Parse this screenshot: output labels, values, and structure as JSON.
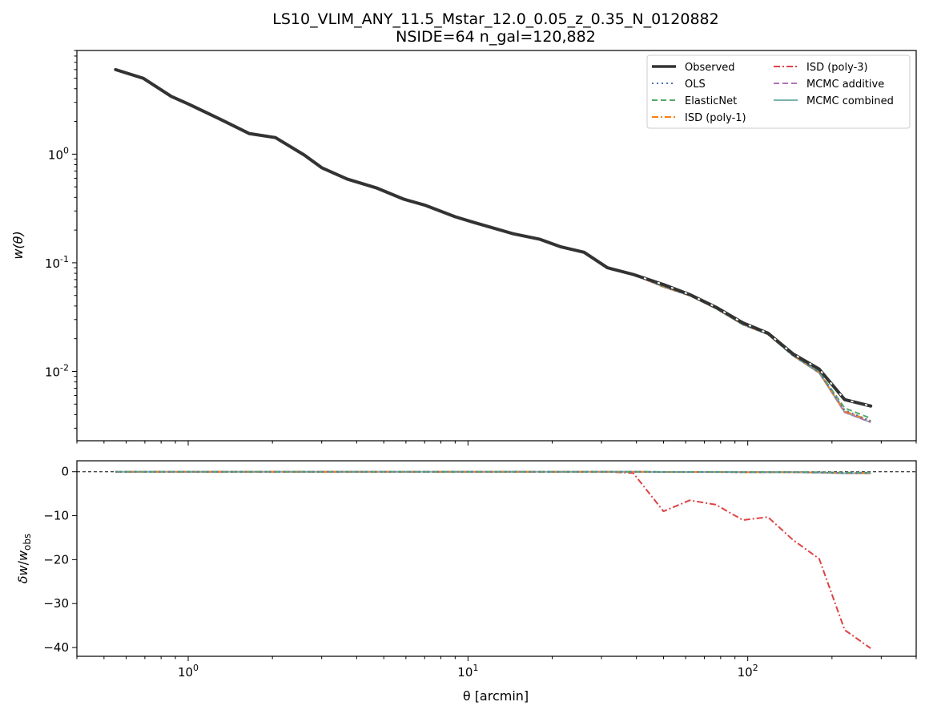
{
  "figure": {
    "title_line1": "LS10_VLIM_ANY_11.5_Mstar_12.0_0.05_z_0.35_N_0120882",
    "title_line2": "NSIDE=64  n_gal=120,882"
  },
  "chart_data": [
    {
      "panel": "top",
      "type": "line",
      "ylabel": "w(θ)",
      "xscale": "log",
      "yscale": "log",
      "xlim": [
        0.4,
        400
      ],
      "ylim": [
        0.0023,
        9
      ],
      "legend_position": "upper right",
      "legend_columns": 2,
      "x_tick_labels": [
        "10^0",
        "10^1",
        "10^2"
      ],
      "y_tick_labels": [
        "10^-2",
        "10^-1",
        "10^0"
      ],
      "x": [
        0.55,
        0.69,
        0.87,
        1.0,
        1.3,
        1.65,
        2.05,
        2.6,
        3.0,
        3.7,
        4.7,
        5.9,
        7.0,
        9.0,
        10.5,
        14.5,
        18.0,
        21.5,
        26.0,
        31.5,
        39.0,
        50.0,
        62.0,
        77.0,
        96.0,
        118.0,
        145.0,
        180.0,
        222.0,
        275.0
      ],
      "series": [
        {
          "name": "Observed",
          "color": "#333333",
          "style": "solid",
          "values": [
            6.0,
            5.0,
            3.4,
            2.9,
            2.1,
            1.55,
            1.42,
            0.98,
            0.75,
            0.59,
            0.49,
            0.385,
            0.34,
            0.265,
            0.235,
            0.185,
            0.165,
            0.14,
            0.125,
            0.09,
            0.078,
            0.063,
            0.051,
            0.039,
            0.028,
            0.0225,
            0.0145,
            0.0105,
            0.0055,
            0.0048
          ]
        },
        {
          "name": "OLS",
          "color": "#4c72b0",
          "style": "dotted",
          "values": [
            6.0,
            5.0,
            3.4,
            2.9,
            2.1,
            1.55,
            1.42,
            0.98,
            0.75,
            0.59,
            0.49,
            0.385,
            0.34,
            0.265,
            0.235,
            0.185,
            0.165,
            0.14,
            0.125,
            0.09,
            0.078,
            0.06,
            0.05,
            0.038,
            0.027,
            0.022,
            0.014,
            0.0098,
            0.0044,
            0.0035
          ]
        },
        {
          "name": "ElasticNet",
          "color": "#55a868",
          "style": "dashed",
          "values": [
            6.0,
            5.0,
            3.4,
            2.9,
            2.1,
            1.55,
            1.42,
            0.98,
            0.75,
            0.59,
            0.49,
            0.385,
            0.34,
            0.265,
            0.235,
            0.185,
            0.165,
            0.14,
            0.125,
            0.09,
            0.078,
            0.061,
            0.05,
            0.038,
            0.027,
            0.022,
            0.014,
            0.0099,
            0.0046,
            0.0037
          ]
        },
        {
          "name": "ISD (poly-1)",
          "color": "#ff7f0e",
          "style": "dashdot",
          "values": [
            6.0,
            5.0,
            3.4,
            2.9,
            2.1,
            1.55,
            1.42,
            0.98,
            0.75,
            0.59,
            0.49,
            0.385,
            0.34,
            0.265,
            0.235,
            0.185,
            0.165,
            0.14,
            0.125,
            0.09,
            0.078,
            0.06,
            0.05,
            0.038,
            0.027,
            0.022,
            0.014,
            0.0098,
            0.0043,
            0.0035
          ]
        },
        {
          "name": "ISD (poly-3)",
          "color": "#dd4444",
          "style": "dashdot",
          "values": [
            6.0,
            5.0,
            3.4,
            2.9,
            2.1,
            1.55,
            1.42,
            0.98,
            0.75,
            0.59,
            0.49,
            0.385,
            0.34,
            0.265,
            0.235,
            0.185,
            0.165,
            0.14,
            0.125,
            0.09,
            0.078,
            0.06,
            0.05,
            0.038,
            0.027,
            0.022,
            0.014,
            0.0098,
            0.0043,
            0.0035
          ]
        },
        {
          "name": "MCMC additive",
          "color": "#b073b8",
          "style": "dashed",
          "values": [
            6.0,
            5.0,
            3.4,
            2.9,
            2.1,
            1.55,
            1.42,
            0.98,
            0.75,
            0.59,
            0.49,
            0.385,
            0.34,
            0.265,
            0.235,
            0.185,
            0.165,
            0.14,
            0.125,
            0.09,
            0.078,
            0.06,
            0.05,
            0.038,
            0.027,
            0.022,
            0.014,
            0.0097,
            0.0042,
            0.0034
          ]
        },
        {
          "name": "MCMC combined",
          "color": "#7ab3ad",
          "style": "solid",
          "values": [
            6.0,
            5.0,
            3.4,
            2.9,
            2.1,
            1.55,
            1.42,
            0.98,
            0.75,
            0.59,
            0.49,
            0.385,
            0.34,
            0.265,
            0.235,
            0.185,
            0.165,
            0.14,
            0.125,
            0.09,
            0.078,
            0.06,
            0.05,
            0.038,
            0.027,
            0.022,
            0.014,
            0.0097,
            0.0042,
            0.0034
          ]
        }
      ]
    },
    {
      "panel": "bottom",
      "type": "line",
      "xlabel": "θ [arcmin]",
      "ylabel": "δw/w_obs",
      "xscale": "log",
      "xlim": [
        0.4,
        400
      ],
      "ylim": [
        -42,
        2.5
      ],
      "x_tick_labels": [
        "10^0",
        "10^1",
        "10^2"
      ],
      "y_ticks": [
        0,
        -10,
        -20,
        -30,
        -40
      ],
      "reference_line_y": 0,
      "x": [
        0.55,
        0.69,
        0.87,
        1.0,
        1.3,
        1.65,
        2.05,
        2.6,
        3.0,
        3.7,
        4.7,
        5.9,
        7.0,
        9.0,
        10.5,
        14.5,
        18.0,
        21.5,
        26.0,
        31.5,
        39.0,
        50.0,
        62.0,
        77.0,
        96.0,
        118.0,
        145.0,
        180.0,
        222.0,
        275.0
      ],
      "series": [
        {
          "name": "OLS",
          "color": "#4c72b0",
          "style": "dotted",
          "values": [
            0,
            0,
            0,
            0,
            0,
            0,
            0,
            0,
            0,
            0,
            0,
            0,
            0,
            0,
            0,
            0,
            0,
            0,
            0,
            0,
            0,
            -0.05,
            -0.05,
            -0.05,
            -0.1,
            -0.1,
            -0.1,
            -0.15,
            -0.3,
            -0.3
          ]
        },
        {
          "name": "ElasticNet",
          "color": "#55a868",
          "style": "dashed",
          "values": [
            0,
            0,
            0,
            0,
            0,
            0,
            0,
            0,
            0,
            0,
            0,
            0,
            0,
            0,
            0,
            0,
            0,
            0,
            0,
            0,
            0,
            -0.04,
            -0.04,
            -0.04,
            -0.08,
            -0.08,
            -0.08,
            -0.1,
            -0.2,
            -0.2
          ]
        },
        {
          "name": "ISD (poly-1)",
          "color": "#ff7f0e",
          "style": "dashdot",
          "values": [
            0,
            0,
            0,
            0,
            0,
            0,
            0,
            0,
            0,
            0,
            0,
            0,
            0,
            0,
            0,
            0,
            0,
            0,
            0,
            0,
            0,
            -0.05,
            -0.05,
            -0.05,
            -0.1,
            -0.1,
            -0.1,
            -0.15,
            -0.3,
            -0.3
          ]
        },
        {
          "name": "ISD (poly-3)",
          "color": "#dd4444",
          "style": "dashdot",
          "values": [
            0,
            0,
            0,
            0,
            0,
            0,
            0,
            0,
            0,
            0,
            0,
            0,
            0,
            0,
            0,
            0,
            0,
            0,
            0,
            0,
            -0.3,
            -9.0,
            -6.5,
            -7.5,
            -11.0,
            -10.3,
            -15.5,
            -19.8,
            -36.0,
            -40.2
          ]
        },
        {
          "name": "MCMC additive",
          "color": "#b073b8",
          "style": "dashed",
          "values": [
            0,
            0,
            0,
            0,
            0,
            0,
            0,
            0,
            0,
            0,
            0,
            0,
            0,
            0,
            0,
            0,
            0,
            0,
            0,
            0,
            0,
            -0.05,
            -0.05,
            -0.05,
            -0.1,
            -0.1,
            -0.1,
            -0.2,
            -0.35,
            -0.35
          ]
        },
        {
          "name": "MCMC combined",
          "color": "#7ab3ad",
          "style": "solid",
          "values": [
            0,
            0,
            0,
            0,
            0,
            0,
            0,
            0,
            0,
            0,
            0,
            0,
            0,
            0,
            0,
            0,
            0,
            0,
            0,
            0,
            0,
            -0.05,
            -0.05,
            -0.05,
            -0.1,
            -0.1,
            -0.1,
            -0.2,
            -0.35,
            -0.35
          ]
        }
      ]
    }
  ]
}
